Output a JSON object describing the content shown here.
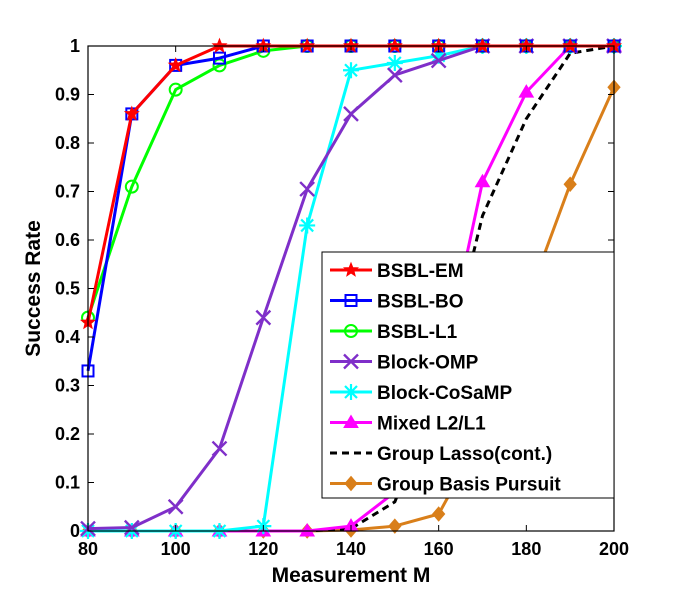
{
  "chart_data": {
    "type": "line",
    "xlabel": "Measurement M",
    "ylabel": "Success Rate",
    "xlim": [
      80,
      200
    ],
    "ylim": [
      0,
      1
    ],
    "xticks": [
      80,
      100,
      120,
      140,
      160,
      180,
      200
    ],
    "yticks": [
      0,
      0.1,
      0.2,
      0.3,
      0.4,
      0.5,
      0.6,
      0.7,
      0.8,
      0.9,
      1
    ],
    "xtick_labels": [
      "80",
      "100",
      "120",
      "140",
      "160",
      "180",
      "200"
    ],
    "ytick_labels": [
      "0",
      "0.1",
      "0.2",
      "0.3",
      "0.4",
      "0.5",
      "0.6",
      "0.7",
      "0.8",
      "0.9",
      "1"
    ],
    "grid": false,
    "legend_position": "lower-right",
    "x": [
      80,
      90,
      100,
      110,
      120,
      130,
      140,
      150,
      160,
      170,
      180,
      190,
      200
    ],
    "series": [
      {
        "name": "BSBL-EM",
        "color": "#ff0000",
        "marker": "star",
        "dash": "none",
        "values": [
          0.43,
          0.86,
          0.96,
          1,
          1,
          1,
          1,
          1,
          1,
          1,
          1,
          1,
          1
        ]
      },
      {
        "name": "BSBL-BO",
        "color": "#0000ff",
        "marker": "square",
        "dash": "none",
        "values": [
          0.33,
          0.86,
          0.96,
          0.975,
          1,
          1,
          1,
          1,
          1,
          1,
          1,
          1,
          1
        ]
      },
      {
        "name": "BSBL-L1",
        "color": "#00ff00",
        "marker": "circle",
        "dash": "none",
        "values": [
          0.44,
          0.71,
          0.91,
          0.96,
          0.99,
          1,
          1,
          1,
          1,
          1,
          1,
          1,
          1
        ]
      },
      {
        "name": "Block-OMP",
        "color": "#7f2fc9",
        "marker": "x",
        "dash": "none",
        "values": [
          0.005,
          0.007,
          0.05,
          0.17,
          0.44,
          0.705,
          0.86,
          0.94,
          0.97,
          1,
          1,
          1,
          1
        ]
      },
      {
        "name": "Block-CoSaMP",
        "color": "#00ffff",
        "marker": "asterisk",
        "dash": "none",
        "values": [
          0,
          0,
          0,
          0,
          0.01,
          0.63,
          0.95,
          0.965,
          0.98,
          1,
          1,
          1,
          1
        ]
      },
      {
        "name": "Mixed L2/L1",
        "color": "#ff00ff",
        "marker": "triangle",
        "dash": "none",
        "values": [
          0,
          0,
          0,
          0,
          0,
          0,
          0.01,
          0.08,
          0.3,
          0.72,
          0.905,
          1,
          1
        ]
      },
      {
        "name": "Group Lasso(cont.)",
        "color": "#000000",
        "marker": "none",
        "dash": "7,5",
        "values": [
          0,
          0,
          0,
          0,
          0,
          0,
          0.005,
          0.06,
          0.28,
          0.65,
          0.85,
          0.985,
          1
        ]
      },
      {
        "name": "Group Basis Pursuit",
        "color": "#d97f1a",
        "marker": "diamond",
        "dash": "none",
        "values": [
          0,
          0,
          0,
          0,
          0,
          0,
          0.002,
          0.01,
          0.035,
          0.2,
          0.47,
          0.715,
          0.915
        ]
      }
    ]
  }
}
